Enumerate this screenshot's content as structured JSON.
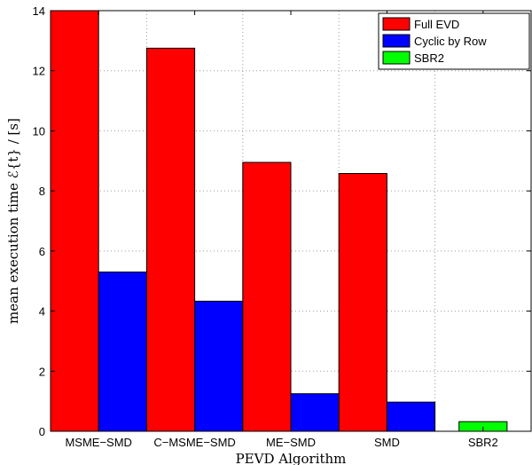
{
  "chart_data": {
    "type": "bar",
    "categories": [
      "MSME−SMD",
      "C−MSME−SMD",
      "ME−SMD",
      "SMD",
      "SBR2"
    ],
    "series": [
      {
        "name": "Full EVD",
        "color": "#ff0000",
        "values": [
          14.0,
          12.75,
          8.95,
          8.58,
          null
        ]
      },
      {
        "name": "Cyclic by Row",
        "color": "#0000ff",
        "values": [
          5.3,
          4.33,
          1.25,
          0.97,
          null
        ]
      },
      {
        "name": "SBR2",
        "color": "#00ff00",
        "values": [
          null,
          null,
          null,
          null,
          0.32
        ]
      }
    ],
    "xlabel": "PEVD Algorithm",
    "ylabel": "mean execution time ℰ{t} / [s]",
    "ylim": [
      0,
      14
    ],
    "yticks": [
      0,
      2,
      4,
      6,
      8,
      10,
      12,
      14
    ],
    "grid": true,
    "legend_position": "top-right"
  }
}
